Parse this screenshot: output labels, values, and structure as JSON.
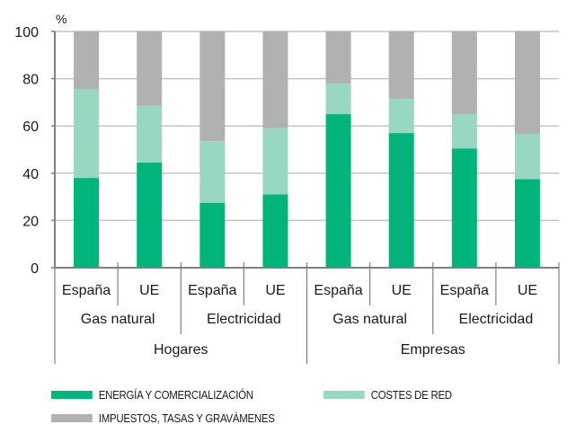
{
  "chart_data": {
    "type": "bar",
    "stacked": true,
    "title": "",
    "ylabel": "%",
    "xlabel": "",
    "ylim": [
      0,
      100
    ],
    "yticks": [
      0,
      20,
      40,
      60,
      80,
      100
    ],
    "grid": true,
    "categories": [
      "España",
      "UE",
      "España",
      "UE",
      "España",
      "UE",
      "España",
      "UE"
    ],
    "group_level_1": [
      {
        "label": "Gas natural",
        "span": 2
      },
      {
        "label": "Electricidad",
        "span": 2
      },
      {
        "label": "Gas natural",
        "span": 2
      },
      {
        "label": "Electricidad",
        "span": 2
      }
    ],
    "group_level_2": [
      {
        "label": "Hogares",
        "span": 4
      },
      {
        "label": "Empresas",
        "span": 4
      }
    ],
    "series": [
      {
        "name": "ENERGÍA Y COMERCIALIZACIÓN",
        "color": "#00b47c",
        "values": [
          38,
          44.5,
          27.5,
          31,
          65,
          57,
          50.5,
          37.5
        ]
      },
      {
        "name": "COSTES DE RED",
        "color": "#98d8c0",
        "values": [
          37.5,
          24,
          26,
          28,
          13,
          14.5,
          14.5,
          19
        ]
      },
      {
        "name": "IMPUESTOS, TASAS Y GRAVÁMENES",
        "color": "#b0b2b2",
        "values": [
          24.5,
          31.5,
          46.5,
          41,
          22,
          28.5,
          35,
          43.5
        ]
      }
    ],
    "legend_position": "bottom"
  },
  "legend": [
    {
      "label": "ENERGÍA Y COMERCIALIZACIÓN",
      "color": "#00b47c"
    },
    {
      "label": "COSTES DE RED",
      "color": "#98d8c0"
    },
    {
      "label": "IMPUESTOS, TASAS Y GRAVÁMENES",
      "color": "#b0b2b2"
    }
  ]
}
